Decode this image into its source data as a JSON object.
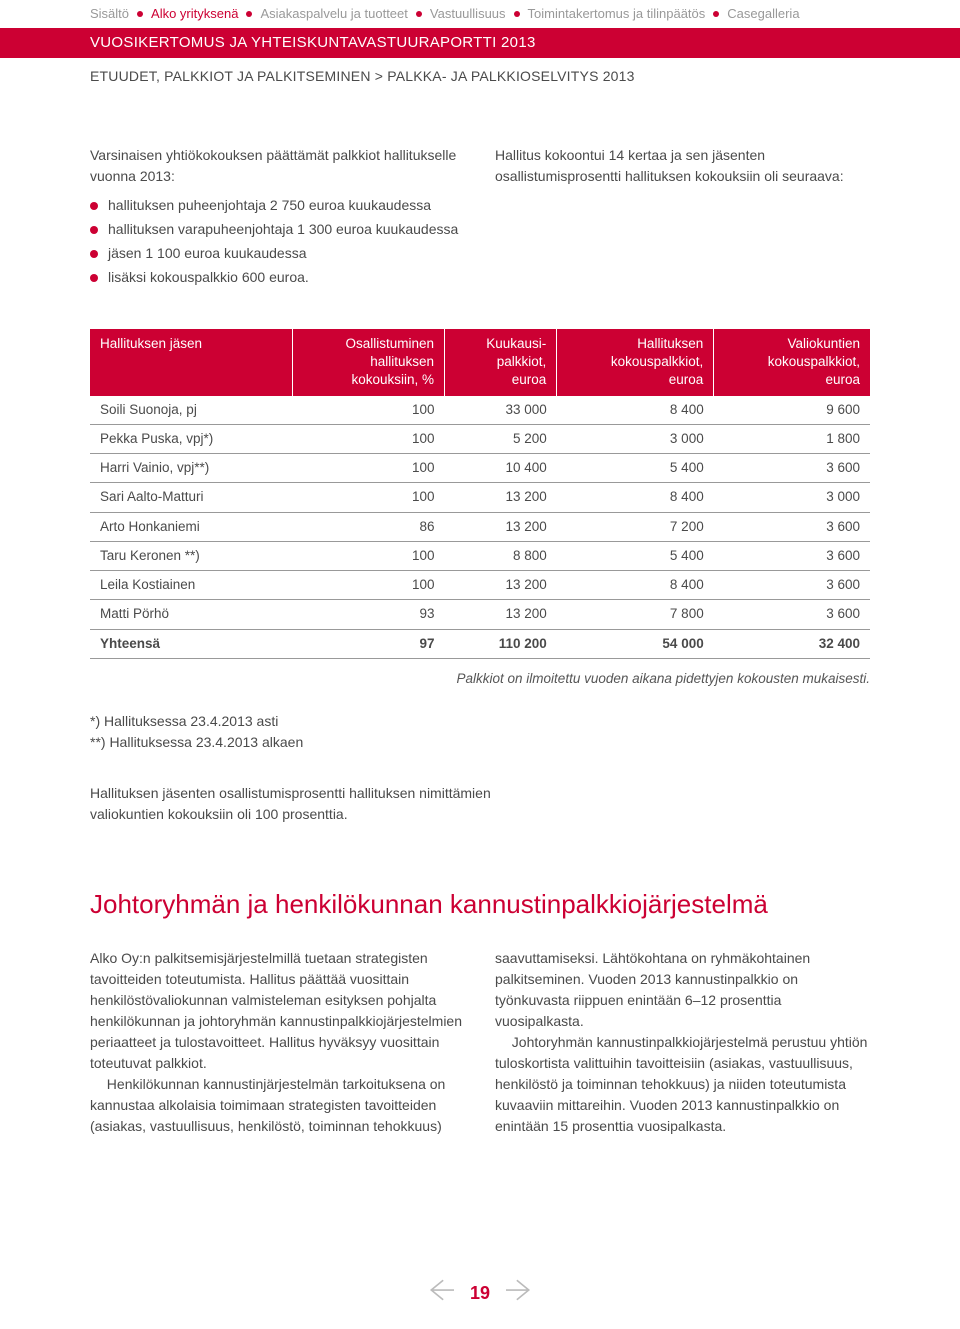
{
  "nav": {
    "items": [
      {
        "label": "Sisältö",
        "active": false
      },
      {
        "label": "Alko yrityksenä",
        "active": true
      },
      {
        "label": "Asiakaspalvelu ja tuotteet",
        "active": false
      },
      {
        "label": "Vastuullisuus",
        "active": false
      },
      {
        "label": "Toimintakertomus ja tilinpäätös",
        "active": false
      },
      {
        "label": "Casegalleria",
        "active": false
      }
    ]
  },
  "header": {
    "title": "VUOSIKERTOMUS JA YHTEISKUNTAVASTUURAPORTTI 2013",
    "breadcrumb": "ETUUDET, PALKKIOT JA PALKITSEMINEN > PALKKA- JA PALKKIOSELVITYS 2013"
  },
  "left_intro": "Varsinaisen yhtiökokouksen päättämät palkkiot hallitukselle vuonna 2013:",
  "bullets": [
    "hallituksen puheenjohtaja 2 750 euroa kuukaudessa",
    "hallituksen varapuheenjohtaja 1 300 euroa kuukaudessa",
    "jäsen 1 100 euroa kuukaudessa",
    "lisäksi kokouspalkkio 600 euroa."
  ],
  "right_intro": "Hallitus kokoontui 14 kertaa ja sen jäsenten osallistumisprosentti hallituksen kokouksiin oli seuraava:",
  "table": {
    "columns": [
      "Hallituksen jäsen",
      "Osallistuminen hallituksen kokouksiin, %",
      "Kuukausi-palkkiot, euroa",
      "Hallituksen kokouspalkkiot, euroa",
      "Valiokuntien kokouspalkkiot, euroa"
    ],
    "col_html": [
      "Hallituksen  jäsen",
      "Osallistuminen<br>hallituksen<br>kokouksiin, %",
      "Kuukausi-<br>palkkiot,<br>euroa",
      "Hallituksen<br>kokouspalkkiot,<br>euroa",
      "Valiokuntien<br>kokouspalkkiot,<br>euroa"
    ],
    "rows": [
      [
        "Soili Suonoja, pj",
        "100",
        "33 000",
        "8 400",
        "9 600"
      ],
      [
        "Pekka Puska, vpj*)",
        "100",
        "5 200",
        "3 000",
        "1 800"
      ],
      [
        "Harri Vainio, vpj**)",
        "100",
        "10 400",
        "5 400",
        "3 600"
      ],
      [
        "Sari Aalto-Matturi",
        "100",
        "13 200",
        "8 400",
        "3 000"
      ],
      [
        "Arto Honkaniemi",
        "86",
        "13 200",
        "7 200",
        "3 600"
      ],
      [
        "Taru Keronen **)",
        "100",
        "8 800",
        "5 400",
        "3 600"
      ],
      [
        "Leila Kostiainen",
        "100",
        "13 200",
        "8 400",
        "3 600"
      ],
      [
        "Matti Pörhö",
        "93",
        "13 200",
        "7 800",
        "3 600"
      ]
    ],
    "total": [
      "Yhteensä",
      "97",
      "110 200",
      "54 000",
      "32 400"
    ],
    "note": "Palkkiot on ilmoitettu vuoden aikana pidettyjen kokousten mukaisesti."
  },
  "footnotes": [
    "*) Hallituksessa 23.4.2013 asti",
    "**) Hallituksessa 23.4.2013 alkaen"
  ],
  "participation_note": "Hallituksen jäsenten osallistumisprosentti hallituksen nimittämien valiokuntien kokouksiin oli 100 prosenttia.",
  "section2": {
    "title": "Johtoryhmän ja henkilökunnan kannustinpalkkiojärjestelmä",
    "p1": "Alko Oy:n palkitsemisjärjestelmillä tuetaan strategisten tavoitteiden toteutumista. Hallitus päättää vuosittain henkilöstövaliokunnan valmisteleman esityksen pohjalta henkilökunnan ja johtoryhmän kannustinpalkkiojärjestelmien periaatteet ja tulostavoitteet. Hallitus hyväksyy vuosittain toteutuvat palkkiot.",
    "p2": "Henkilökunnan kannustinjärjestelmän tarkoituksena on kannustaa alkolaisia toimimaan strategisten tavoitteiden (asiakas, vastuullisuus, henkilöstö, toiminnan tehokkuus) saavuttamiseksi. Lähtökohtana on ryhmäkohtainen palkitseminen. Vuoden 2013 kannustinpalkkio on työnkuvasta riippuen enintään 6–12 prosenttia vuosipalkasta.",
    "p3": "Johtoryhmän kannustinpalkkiojärjestelmä perustuu yhtiön tuloskortista valittuihin tavoitteisiin (asiakas, vastuullisuus, henkilöstö ja toiminnan tehokkuus) ja niiden toteutumista kuvaaviin mittareihin. Vuoden 2013 kannustinpalkkio on enintään 15 prosenttia vuosipalkasta."
  },
  "pager": {
    "page": "19"
  },
  "colors": {
    "accent": "#cc0033",
    "text": "#4a4a4a",
    "muted": "#999999"
  }
}
